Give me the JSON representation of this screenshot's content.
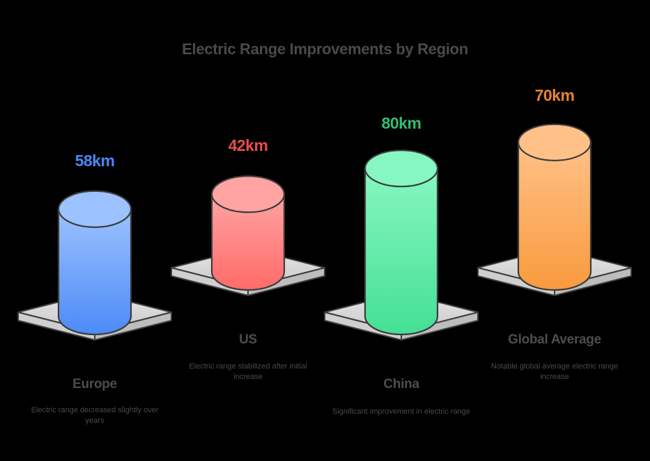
{
  "title": "Electric Range Improvements by Region",
  "items": [
    {
      "region": "Europe",
      "value_label": "58km",
      "value": 58,
      "description": "Electric range decreased slightly over years",
      "color": "#4a86f5",
      "color_top": "#9cc2ff",
      "color_bottom": "#4c8bf7"
    },
    {
      "region": "US",
      "value_label": "42km",
      "value": 42,
      "description": "Electric range stabilized after initial increase",
      "color": "#e84c4c",
      "color_top": "#ffa3a3",
      "color_bottom": "#ff6b68"
    },
    {
      "region": "China",
      "value_label": "80km",
      "value": 80,
      "description": "Significant improvement in electric range",
      "color": "#2fbf71",
      "color_top": "#86f7c0",
      "color_bottom": "#45df95"
    },
    {
      "region": "Global Average",
      "value_label": "70km",
      "value": 70,
      "description": "Notable global average electric range increase",
      "color": "#e8832e",
      "color_top": "#ffc188",
      "color_bottom": "#f99a3e"
    }
  ],
  "chart_data": {
    "type": "bar",
    "title": "Electric Range Improvements by Region",
    "categories": [
      "Europe",
      "US",
      "China",
      "Global Average"
    ],
    "values": [
      58,
      42,
      80,
      70
    ],
    "unit": "km",
    "annotations": [
      "Electric range decreased slightly over years",
      "Electric range stabilized after initial increase",
      "Significant improvement in electric range",
      "Notable global average electric range increase"
    ],
    "xlabel": "",
    "ylabel": "",
    "grid": false,
    "legend": "none"
  }
}
